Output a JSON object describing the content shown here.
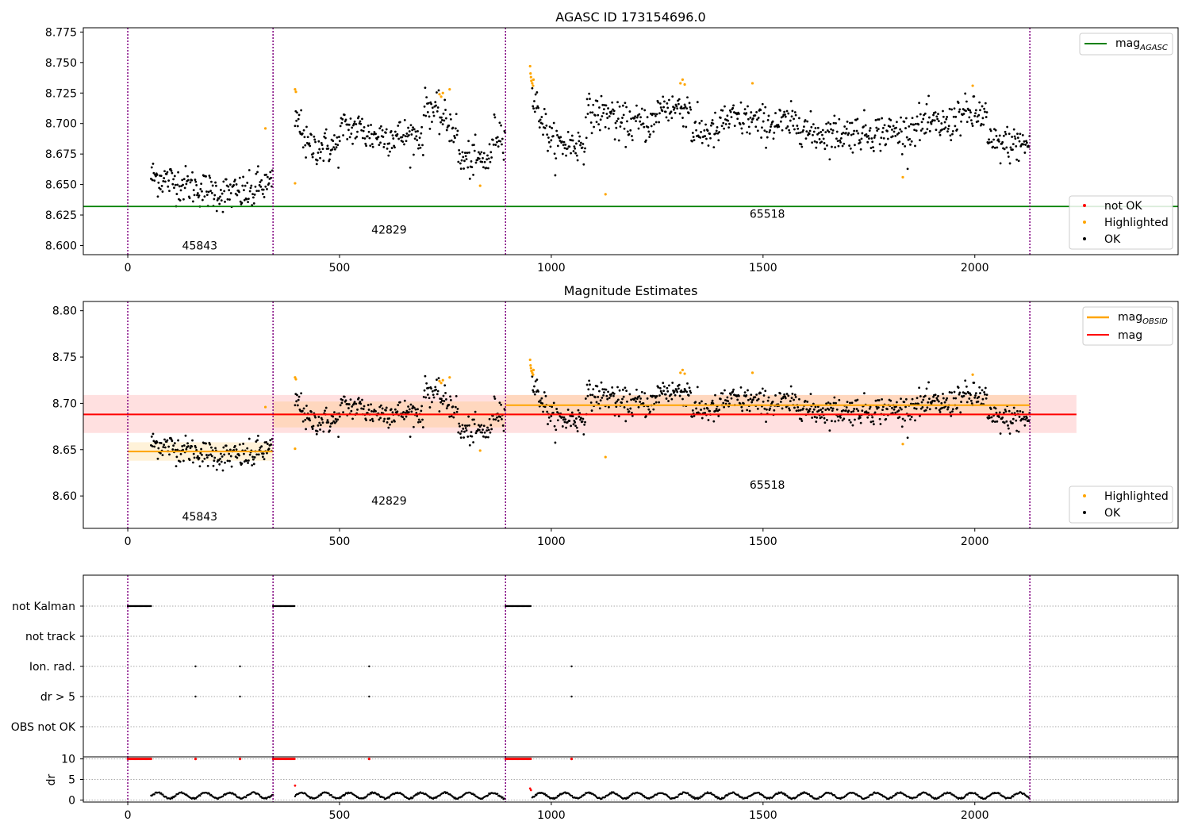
{
  "figure": {
    "background": "#ffffff"
  },
  "colors": {
    "ok": "#000000",
    "highlighted": "#ffa500",
    "not_ok": "#ff0000",
    "agasc_line": "#008000",
    "obsid_line": "#ffa500",
    "mag_line": "#ff0000",
    "obs_boundary": "#800080",
    "band_obsid": "#ffa500",
    "band_mag": "#ff0000",
    "flag_grid": "#aaaaaa"
  },
  "chart_data": [
    {
      "type": "scatter",
      "title": "AGASC ID 173154696.0",
      "xlim": [
        -105,
        2480
      ],
      "ylim": [
        8.5925,
        8.7785
      ],
      "xticks": [
        0,
        500,
        1000,
        1500,
        2000
      ],
      "yticks": [
        8.6,
        8.625,
        8.65,
        8.675,
        8.7,
        8.725,
        8.75,
        8.775
      ],
      "yticklabels": [
        "8.600",
        "8.625",
        "8.650",
        "8.675",
        "8.700",
        "8.725",
        "8.750",
        "8.775"
      ],
      "obs_boundaries": [
        0,
        343,
        892,
        2130
      ],
      "obs_labels": [
        {
          "text": "45843",
          "x": 170,
          "y": 8.6
        },
        {
          "text": "42829",
          "x": 617,
          "y": 8.613
        },
        {
          "text": "65518",
          "x": 1510,
          "y": 8.626
        }
      ],
      "hlines": [
        {
          "name": "mag_AGASC",
          "y": 8.632,
          "x0": -105,
          "x1": 2480,
          "color": "#008000"
        }
      ],
      "segments": [
        {
          "x0": 55,
          "x1": 343,
          "mean": 8.648,
          "sd": 0.009
        },
        {
          "x0": 395,
          "x1": 892,
          "mean": 8.688,
          "sd": 0.012
        },
        {
          "x0": 892,
          "x1": 2130,
          "mean": 8.697,
          "sd": 0.013
        }
      ],
      "highlighted_points": [
        {
          "x": 325,
          "y": 8.696
        },
        {
          "x": 395,
          "y": 8.728
        },
        {
          "x": 397,
          "y": 8.726
        },
        {
          "x": 395,
          "y": 8.651
        },
        {
          "x": 736,
          "y": 8.724
        },
        {
          "x": 740,
          "y": 8.722
        },
        {
          "x": 744,
          "y": 8.725
        },
        {
          "x": 760,
          "y": 8.728
        },
        {
          "x": 832,
          "y": 8.649
        },
        {
          "x": 950,
          "y": 8.747
        },
        {
          "x": 951,
          "y": 8.741
        },
        {
          "x": 952,
          "y": 8.738
        },
        {
          "x": 953,
          "y": 8.735
        },
        {
          "x": 955,
          "y": 8.733
        },
        {
          "x": 957,
          "y": 8.731
        },
        {
          "x": 958,
          "y": 8.736
        },
        {
          "x": 1128,
          "y": 8.642
        },
        {
          "x": 1305,
          "y": 8.733
        },
        {
          "x": 1310,
          "y": 8.736
        },
        {
          "x": 1315,
          "y": 8.732
        },
        {
          "x": 1475,
          "y": 8.733
        },
        {
          "x": 1830,
          "y": 8.656
        },
        {
          "x": 1995,
          "y": 8.731
        }
      ],
      "legends": [
        {
          "position": "upper right",
          "entries": [
            {
              "label": "mag",
              "subscript": "AGASC",
              "kind": "line",
              "color": "#008000"
            }
          ]
        },
        {
          "position": "lower right",
          "entries": [
            {
              "label": "not OK",
              "kind": "dot",
              "color": "#ff0000"
            },
            {
              "label": "Highlighted",
              "kind": "dot",
              "color": "#ffa500"
            },
            {
              "label": "OK",
              "kind": "dot",
              "color": "#000000"
            }
          ]
        }
      ],
      "grid": false
    },
    {
      "type": "scatter",
      "title": "Magnitude Estimates",
      "xlim": [
        -105,
        2480
      ],
      "ylim": [
        8.565,
        8.81
      ],
      "xticks": [
        0,
        500,
        1000,
        1500,
        2000
      ],
      "yticks": [
        8.6,
        8.65,
        8.7,
        8.75,
        8.8
      ],
      "yticklabels": [
        "8.60",
        "8.65",
        "8.70",
        "8.75",
        "8.80"
      ],
      "obs_boundaries": [
        0,
        343,
        892,
        2130
      ],
      "obs_labels": [
        {
          "text": "45843",
          "x": 170,
          "y": 8.578
        },
        {
          "text": "42829",
          "x": 617,
          "y": 8.595
        },
        {
          "text": "65518",
          "x": 1510,
          "y": 8.612
        }
      ],
      "bands": [
        {
          "x0": -105,
          "x1": 2240,
          "y0": 8.668,
          "y1": 8.709,
          "color": "#ff0000",
          "opacity": 0.12
        },
        {
          "x0": 0,
          "x1": 343,
          "y0": 8.638,
          "y1": 8.658,
          "color": "#ffa500",
          "opacity": 0.15
        },
        {
          "x0": 343,
          "x1": 892,
          "y0": 8.674,
          "y1": 8.702,
          "color": "#ffa500",
          "opacity": 0.15
        },
        {
          "x0": 892,
          "x1": 2130,
          "y0": 8.686,
          "y1": 8.709,
          "color": "#ffa500",
          "opacity": 0.15
        }
      ],
      "lines": [
        {
          "name": "mag_OBSID",
          "color": "#ffa500",
          "points": [
            [
              0,
              8.648
            ],
            [
              343,
              8.648
            ]
          ]
        },
        {
          "name": "mag_OBSID",
          "color": "#ffa500",
          "points": [
            [
              343,
              8.688
            ],
            [
              892,
              8.688
            ]
          ]
        },
        {
          "name": "mag_OBSID",
          "color": "#ffa500",
          "points": [
            [
              892,
              8.698
            ],
            [
              2130,
              8.698
            ]
          ]
        },
        {
          "name": "mag",
          "color": "#ff0000",
          "points": [
            [
              -105,
              8.688
            ],
            [
              2240,
              8.688
            ]
          ]
        }
      ],
      "legends": [
        {
          "position": "upper right",
          "entries": [
            {
              "label": "mag",
              "subscript": "OBSID",
              "kind": "line",
              "color": "#ffa500"
            },
            {
              "label": "mag",
              "kind": "line",
              "color": "#ff0000"
            }
          ]
        },
        {
          "position": "lower right",
          "entries": [
            {
              "label": "Highlighted",
              "kind": "dot",
              "color": "#ffa500"
            },
            {
              "label": "OK",
              "kind": "dot",
              "color": "#000000"
            }
          ]
        }
      ],
      "grid": false
    },
    {
      "type": "scatter",
      "xlim": [
        -105,
        2480
      ],
      "flag_rows": [
        "not Kalman",
        "not track",
        "Ion. rad.",
        "dr > 5",
        "OBS not OK"
      ],
      "obs_boundaries": [
        0,
        343,
        892,
        2130
      ],
      "flag_runs": [
        {
          "row": "not Kalman",
          "x0": 0,
          "x1": 57
        },
        {
          "row": "not Kalman",
          "x0": 343,
          "x1": 395
        },
        {
          "row": "not Kalman",
          "x0": 892,
          "x1": 952
        }
      ],
      "flag_points": [
        {
          "row": "Ion. rad.",
          "x": 160
        },
        {
          "row": "Ion. rad.",
          "x": 265
        },
        {
          "row": "Ion. rad.",
          "x": 570
        },
        {
          "row": "Ion. rad.",
          "x": 1048
        },
        {
          "row": "dr > 5",
          "x": 160
        },
        {
          "row": "dr > 5",
          "x": 265
        },
        {
          "row": "dr > 5",
          "x": 570
        },
        {
          "row": "dr > 5",
          "x": 1048
        }
      ],
      "grid": true
    },
    {
      "type": "scatter",
      "ylabel": "dr",
      "xlim": [
        -105,
        2480
      ],
      "ylim": [
        -0.5,
        10.5
      ],
      "xticks": [
        0,
        500,
        1000,
        1500,
        2000
      ],
      "yticks": [
        0,
        5,
        10
      ],
      "obs_boundaries": [
        0,
        343,
        892,
        2130
      ],
      "clipped_runs": [
        {
          "x0": 0,
          "x1": 57,
          "y": 10
        },
        {
          "x0": 343,
          "x1": 395,
          "y": 10
        },
        {
          "x0": 892,
          "x1": 952,
          "y": 10
        }
      ],
      "clipped_points": [
        {
          "x": 160,
          "y": 10
        },
        {
          "x": 265,
          "y": 10
        },
        {
          "x": 570,
          "y": 10
        },
        {
          "x": 1048,
          "y": 10
        }
      ],
      "outliers": [
        {
          "x": 395,
          "y": 3.5
        },
        {
          "x": 950,
          "y": 2.8
        },
        {
          "x": 952,
          "y": 2.4
        }
      ],
      "grid": true
    }
  ]
}
